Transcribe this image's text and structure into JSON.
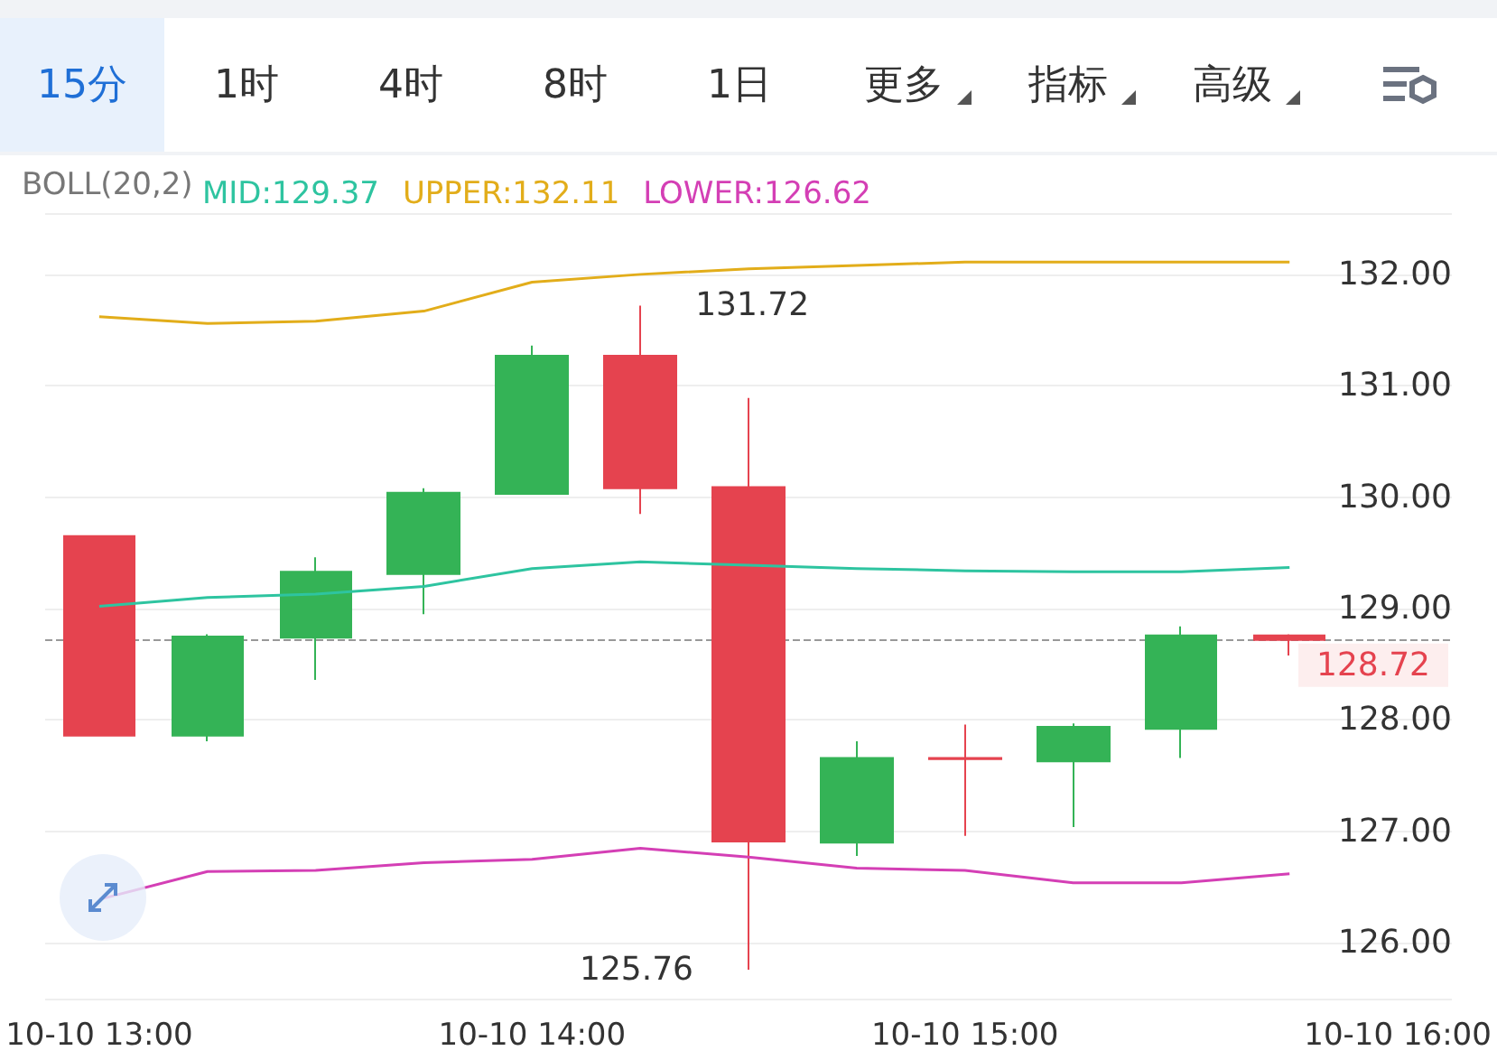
{
  "chart_data": {
    "type": "candlestick",
    "legend_title": "BOLL(20,2)",
    "legend": "top left",
    "grid": "y",
    "marker": "none",
    "categories": [
      "10-10 13:00",
      null,
      null,
      null,
      "10-10 14:00",
      null,
      null,
      null,
      "10-10 15:00",
      null,
      null,
      null,
      "10-10 16:00"
    ],
    "ylim": [
      125.5,
      132.55
    ],
    "yticks": [
      {
        "value": 126,
        "label": "126.00"
      },
      {
        "value": 127,
        "label": "127.00"
      },
      {
        "value": 128,
        "label": "128.00"
      },
      {
        "value": 129,
        "label": "129.00"
      },
      {
        "value": 130,
        "label": "130.00"
      },
      {
        "value": 131,
        "label": "131.00"
      },
      {
        "value": 132,
        "label": "132.00"
      }
    ],
    "series": [
      {
        "ohlc": [
          [
            129.65,
            129.65,
            127.86,
            127.86
          ],
          [
            127.86,
            128.77,
            127.81,
            128.75
          ],
          [
            128.74,
            129.46,
            128.36,
            129.33
          ],
          [
            129.31,
            130.08,
            128.95,
            130.04
          ],
          [
            130.03,
            131.36,
            130.03,
            131.27
          ],
          [
            131.27,
            131.72,
            129.85,
            130.08
          ],
          [
            130.09,
            130.89,
            125.76,
            126.91
          ],
          [
            126.9,
            127.81,
            126.78,
            127.66
          ],
          [
            127.66,
            127.96,
            126.96,
            127.65
          ],
          [
            127.63,
            127.97,
            127.04,
            127.94
          ],
          [
            127.92,
            128.84,
            127.66,
            128.76
          ],
          [
            128.76,
            128.77,
            128.58,
            128.72
          ],
          null
        ],
        "colors": [
          "#e5434f",
          "#34b356",
          "#34b356",
          "#34b356",
          "#34b356",
          "#e5434f",
          "#e5434f",
          "#34b356",
          "#e5434f",
          "#34b356",
          "#34b356",
          "#e5434f",
          null
        ]
      },
      {
        "type": "line",
        "name": "MID:129.37",
        "color": "#2ec4a0",
        "values": [
          129.02,
          129.1,
          129.13,
          129.2,
          129.36,
          129.42,
          129.39,
          129.36,
          129.34,
          129.33,
          129.33,
          129.37,
          null
        ]
      },
      {
        "type": "line",
        "name": "UPPER:132.11",
        "color": "#e2ad1a",
        "values": [
          131.62,
          131.56,
          131.58,
          131.67,
          131.93,
          132.0,
          132.05,
          132.08,
          132.11,
          132.11,
          132.11,
          132.11,
          null
        ]
      },
      {
        "type": "line",
        "name": "LOWER:126.62",
        "color": "#d43fb5",
        "values": [
          126.39,
          126.64,
          126.65,
          126.72,
          126.75,
          126.85,
          126.77,
          126.67,
          126.65,
          126.54,
          126.54,
          126.62,
          null
        ]
      }
    ],
    "ref_lines": [
      {
        "axis": "y",
        "value": 128.72,
        "label": "128.72",
        "color": "#999999",
        "line_style": "dashed"
      }
    ],
    "annotations": [
      "15分",
      "1时",
      "4时",
      "8时",
      "1日",
      "更多",
      "指标",
      "高级",
      "131.72",
      "125.76"
    ]
  }
}
